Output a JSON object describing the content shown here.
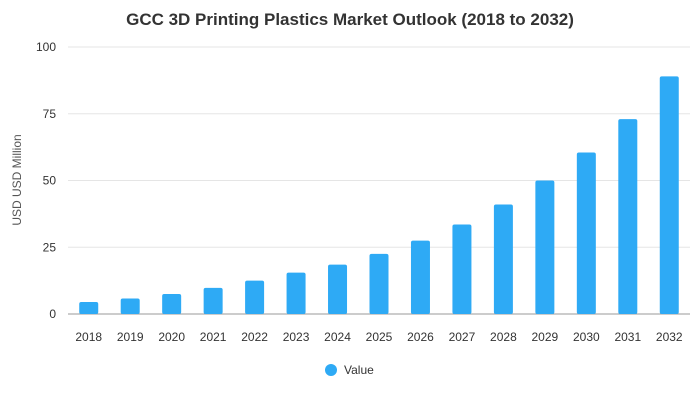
{
  "chart_data": {
    "type": "bar",
    "title": "GCC 3D Printing Plastics Market Outlook (2018 to 2032)",
    "xlabel": "",
    "ylabel": "USD USD Million",
    "categories": [
      "2018",
      "2019",
      "2020",
      "2021",
      "2022",
      "2023",
      "2024",
      "2025",
      "2026",
      "2027",
      "2028",
      "2029",
      "2030",
      "2031",
      "2032"
    ],
    "series": [
      {
        "name": "Value",
        "color": "#2eaaf5",
        "values": [
          4.5,
          5.8,
          7.5,
          9.8,
          12.5,
          15.5,
          18.5,
          22.5,
          27.5,
          33.5,
          41.0,
          50.0,
          60.5,
          73.0,
          89.0
        ]
      }
    ],
    "ylim": [
      0,
      100
    ],
    "yticks": [
      0,
      25,
      50,
      75,
      100
    ],
    "grid": true,
    "legend_position": "bottom-center"
  }
}
